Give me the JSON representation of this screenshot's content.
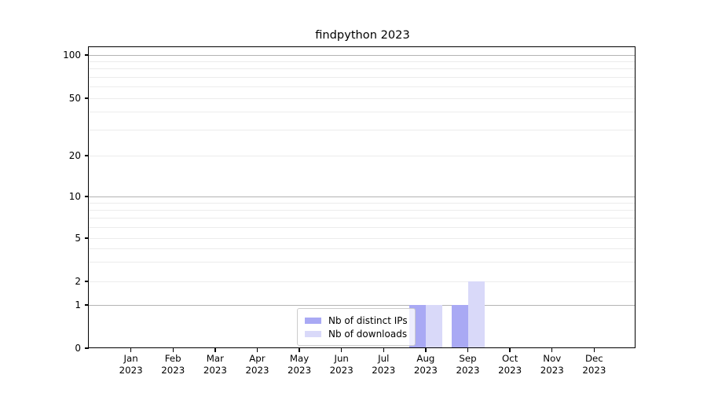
{
  "chart_data": {
    "type": "bar",
    "title": "findpython 2023",
    "categories": [
      "Jan 2023",
      "Feb 2023",
      "Mar 2023",
      "Apr 2023",
      "May 2023",
      "Jun 2023",
      "Jul 2023",
      "Aug 2023",
      "Sep 2023",
      "Oct 2023",
      "Nov 2023",
      "Dec 2023"
    ],
    "series": [
      {
        "name": "Nb of distinct IPs",
        "color": "#a9a9f4",
        "values": [
          0,
          0,
          0,
          0,
          0,
          0,
          0,
          1,
          1,
          0,
          0,
          0
        ]
      },
      {
        "name": "Nb of downloads",
        "color": "#d9d9f9",
        "values": [
          0,
          0,
          0,
          0,
          0,
          0,
          0,
          1,
          2,
          0,
          0,
          0
        ]
      }
    ],
    "xlabel": "",
    "ylabel": "",
    "yscale": "symlog",
    "ylim": [
      0,
      115
    ],
    "y_major_ticks": [
      0,
      1,
      2,
      5,
      10,
      20,
      50,
      100
    ],
    "y_minor_gridlines": [
      3,
      4,
      6,
      7,
      8,
      9,
      30,
      40,
      60,
      70,
      80,
      90
    ],
    "y_decade_lines": [
      1,
      10,
      100
    ],
    "grid": "horizontal major+minor",
    "legend_position": "lower center",
    "colors": {
      "decade_gridline": "#b3b3b3",
      "light_gridline": "#ececec",
      "axis": "#000000",
      "background": "#ffffff"
    }
  }
}
